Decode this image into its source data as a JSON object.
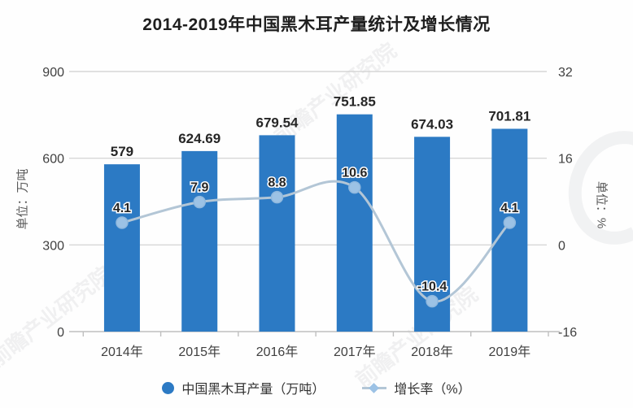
{
  "watermark": "前瞻产业研究院",
  "chart_data": {
    "type": "bar",
    "combo": "bar+line",
    "title": "2014-2019年中国黑木耳产量统计及增长情况",
    "categories": [
      "2014年",
      "2015年",
      "2016年",
      "2017年",
      "2018年",
      "2019年"
    ],
    "series": [
      {
        "name": "中国黑木耳产量（万吨）",
        "type": "bar",
        "axis": "left",
        "values": [
          579,
          624.69,
          679.54,
          751.85,
          674.03,
          701.81
        ],
        "labels": [
          "579",
          "624.69",
          "679.54",
          "751.85",
          "674.03",
          "701.81"
        ],
        "color": "#2C7AC4"
      },
      {
        "name": "增长率（%）",
        "type": "line",
        "axis": "right",
        "values": [
          4.1,
          7.9,
          8.8,
          10.6,
          -10.4,
          4.1
        ],
        "labels": [
          "4.1",
          "7.9",
          "8.8",
          "10.6",
          "-10.4",
          "4.1"
        ],
        "color": "#B3C6D6",
        "marker_color": "#9CC2E5"
      }
    ],
    "left_axis": {
      "title": "单位：万吨",
      "min": 0,
      "max": 900,
      "ticks": [
        900,
        600,
        300,
        0
      ]
    },
    "right_axis": {
      "title": "单位：%",
      "min": -16,
      "max": 32,
      "ticks": [
        32,
        16,
        0,
        -16
      ]
    },
    "grid": true,
    "legend_position": "bottom",
    "colors": {
      "grid": "#CFCFCF",
      "axis": "#BFBFBF",
      "tick_text": "#404040",
      "value_text": "#262626",
      "title_text": "#1F1F1F"
    }
  }
}
